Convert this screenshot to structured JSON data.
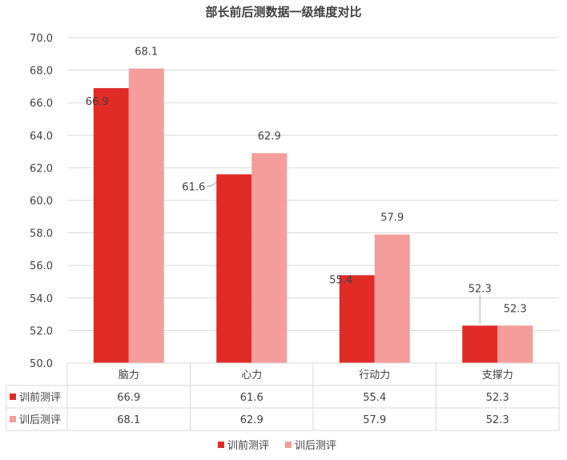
{
  "chart_data": {
    "type": "bar",
    "title": "部长前后测数据一级维度对比",
    "categories": [
      "脑力",
      "心力",
      "行动力",
      "支撑力"
    ],
    "series": [
      {
        "name": "训前测评",
        "values": [
          66.9,
          61.6,
          55.4,
          52.3
        ],
        "color": "#e02b26"
      },
      {
        "name": "训后测评",
        "values": [
          68.1,
          62.9,
          57.9,
          52.3
        ],
        "color": "#f59d9b"
      }
    ],
    "ylim": [
      50.0,
      70.0
    ],
    "yticks": [
      "50.0",
      "52.0",
      "54.0",
      "56.0",
      "58.0",
      "60.0",
      "62.0",
      "64.0",
      "66.0",
      "68.0",
      "70.0"
    ],
    "grid": true,
    "legend": "bottom",
    "data_table": true
  }
}
